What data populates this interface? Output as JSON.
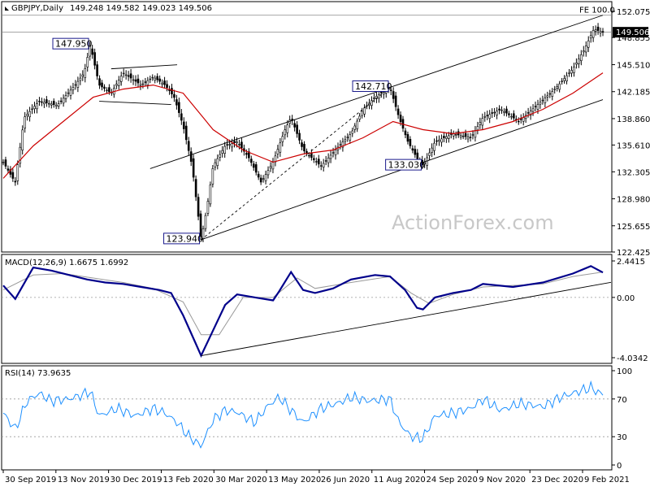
{
  "chart_data": {
    "type": "candlestick",
    "title": "GBPJPY,Daily",
    "ohlc_header": "149.248 149.582 149.023 149.506",
    "last_price": "149.506",
    "watermark": "ActionForex.com",
    "colors": {
      "candle": "#000000",
      "moving_average": "#cc0000",
      "macd": "#00008b",
      "signal": "#999999",
      "rsi": "#1e90ff",
      "label_border": "#1a1a8c"
    },
    "price_axis": {
      "ylim": [
        122.425,
        152.075
      ],
      "ticks": [
        "152.075",
        "148.855",
        "145.510",
        "142.185",
        "138.860",
        "135.610",
        "132.305",
        "128.980",
        "125.655",
        "122.425"
      ]
    },
    "x_ticks": [
      "30 Sep 2019",
      "13 Nov 2019",
      "30 Dec 2019",
      "13 Feb 2020",
      "30 Mar 2020",
      "13 May 2020",
      "26 Jun 2020",
      "11 Aug 2020",
      "24 Sep 2020",
      "9 Nov 2020",
      "23 Dec 2020",
      "9 Feb 2021"
    ],
    "price_path": [
      [
        0,
        133.5
      ],
      [
        0.02,
        131.0
      ],
      [
        0.035,
        139.0
      ],
      [
        0.06,
        141.0
      ],
      [
        0.09,
        140.5
      ],
      [
        0.12,
        143.0
      ],
      [
        0.135,
        144.5
      ],
      [
        0.145,
        147.95
      ],
      [
        0.16,
        143.0
      ],
      [
        0.18,
        142.0
      ],
      [
        0.2,
        144.5
      ],
      [
        0.23,
        143.0
      ],
      [
        0.25,
        144.0
      ],
      [
        0.27,
        143.0
      ],
      [
        0.285,
        141.5
      ],
      [
        0.3,
        138.0
      ],
      [
        0.315,
        133.0
      ],
      [
        0.325,
        127.0
      ],
      [
        0.33,
        123.94
      ],
      [
        0.34,
        128.0
      ],
      [
        0.35,
        133.0
      ],
      [
        0.37,
        135.5
      ],
      [
        0.39,
        136.0
      ],
      [
        0.41,
        134.0
      ],
      [
        0.43,
        131.0
      ],
      [
        0.45,
        133.5
      ],
      [
        0.47,
        137.5
      ],
      [
        0.48,
        139.0
      ],
      [
        0.5,
        135.0
      ],
      [
        0.53,
        133.0
      ],
      [
        0.56,
        135.5
      ],
      [
        0.58,
        137.0
      ],
      [
        0.6,
        140.0
      ],
      [
        0.62,
        141.5
      ],
      [
        0.645,
        142.71
      ],
      [
        0.66,
        139.0
      ],
      [
        0.675,
        136.0
      ],
      [
        0.69,
        134.0
      ],
      [
        0.7,
        133.03
      ],
      [
        0.72,
        136.0
      ],
      [
        0.75,
        137.0
      ],
      [
        0.78,
        136.5
      ],
      [
        0.8,
        139.0
      ],
      [
        0.83,
        140.0
      ],
      [
        0.86,
        138.5
      ],
      [
        0.89,
        140.5
      ],
      [
        0.92,
        142.5
      ],
      [
        0.95,
        145.0
      ],
      [
        0.97,
        147.5
      ],
      [
        0.985,
        149.9
      ],
      [
        1.0,
        149.506
      ]
    ],
    "moving_average_path": [
      [
        0,
        131.5
      ],
      [
        0.05,
        135.5
      ],
      [
        0.1,
        138.5
      ],
      [
        0.15,
        141.5
      ],
      [
        0.2,
        142.5
      ],
      [
        0.25,
        143.0
      ],
      [
        0.3,
        142.0
      ],
      [
        0.35,
        137.5
      ],
      [
        0.4,
        135.0
      ],
      [
        0.45,
        133.5
      ],
      [
        0.5,
        134.5
      ],
      [
        0.55,
        135.0
      ],
      [
        0.6,
        136.5
      ],
      [
        0.65,
        138.5
      ],
      [
        0.7,
        137.5
      ],
      [
        0.75,
        137.0
      ],
      [
        0.8,
        137.5
      ],
      [
        0.85,
        138.5
      ],
      [
        0.9,
        140.0
      ],
      [
        0.95,
        142.0
      ],
      [
        1.0,
        144.5
      ]
    ],
    "trend_lines": [
      {
        "from": [
          0.245,
          132.7
        ],
        "to": [
          1.0,
          151.6
        ]
      },
      {
        "from": [
          0.33,
          123.94
        ],
        "to": [
          1.0,
          141.2
        ]
      },
      {
        "from": [
          0.33,
          123.94
        ],
        "to": [
          0.645,
          142.71
        ],
        "dashed": true
      },
      {
        "from": [
          0.18,
          145.0
        ],
        "to": [
          0.29,
          145.5
        ]
      },
      {
        "from": [
          0.16,
          141.0
        ],
        "to": [
          0.28,
          140.6
        ]
      }
    ],
    "horizontal_lines": [
      {
        "value": 151.6,
        "label": "FE 100.0"
      },
      {
        "value": 149.506
      }
    ],
    "price_labels": [
      {
        "text": "147.950",
        "x": 0.145,
        "y": 147.95
      },
      {
        "text": "142.710",
        "x": 0.645,
        "y": 142.71
      },
      {
        "text": "133.030",
        "x": 0.7,
        "y": 133.03
      },
      {
        "text": "123.940",
        "x": 0.33,
        "y": 123.94
      }
    ],
    "macd": {
      "title": "MACD(12,26,9) 1.6675 1.6992",
      "ylim": [
        -4.0342,
        2.4415
      ],
      "ticks": [
        "2.4415",
        "0.00",
        "-4.0342"
      ],
      "macd_path": [
        [
          0,
          0.8
        ],
        [
          0.02,
          -0.1
        ],
        [
          0.05,
          2.0
        ],
        [
          0.08,
          1.8
        ],
        [
          0.11,
          1.5
        ],
        [
          0.14,
          1.2
        ],
        [
          0.17,
          1.0
        ],
        [
          0.2,
          0.9
        ],
        [
          0.23,
          0.7
        ],
        [
          0.26,
          0.5
        ],
        [
          0.28,
          0.3
        ],
        [
          0.3,
          -1.2
        ],
        [
          0.32,
          -3.0
        ],
        [
          0.33,
          -3.9
        ],
        [
          0.35,
          -2.2
        ],
        [
          0.37,
          -0.5
        ],
        [
          0.39,
          0.2
        ],
        [
          0.42,
          0.0
        ],
        [
          0.45,
          -0.2
        ],
        [
          0.46,
          0.4
        ],
        [
          0.48,
          1.7
        ],
        [
          0.5,
          0.5
        ],
        [
          0.52,
          0.3
        ],
        [
          0.55,
          0.6
        ],
        [
          0.58,
          1.2
        ],
        [
          0.62,
          1.5
        ],
        [
          0.645,
          1.4
        ],
        [
          0.67,
          0.5
        ],
        [
          0.69,
          -0.7
        ],
        [
          0.7,
          -0.8
        ],
        [
          0.72,
          0.0
        ],
        [
          0.75,
          0.3
        ],
        [
          0.78,
          0.5
        ],
        [
          0.8,
          0.9
        ],
        [
          0.85,
          0.7
        ],
        [
          0.9,
          1.0
        ],
        [
          0.95,
          1.6
        ],
        [
          0.98,
          2.1
        ],
        [
          1.0,
          1.6675
        ]
      ],
      "signal_path": [
        [
          0,
          0.5
        ],
        [
          0.05,
          1.5
        ],
        [
          0.1,
          1.6
        ],
        [
          0.15,
          1.3
        ],
        [
          0.2,
          1.0
        ],
        [
          0.25,
          0.6
        ],
        [
          0.3,
          -0.3
        ],
        [
          0.33,
          -2.5
        ],
        [
          0.36,
          -2.5
        ],
        [
          0.4,
          0.0
        ],
        [
          0.45,
          0.0
        ],
        [
          0.49,
          1.3
        ],
        [
          0.52,
          0.6
        ],
        [
          0.58,
          1.0
        ],
        [
          0.645,
          1.4
        ],
        [
          0.68,
          0.3
        ],
        [
          0.71,
          -0.4
        ],
        [
          0.75,
          0.2
        ],
        [
          0.8,
          0.7
        ],
        [
          0.9,
          0.9
        ],
        [
          0.95,
          1.4
        ],
        [
          1.0,
          1.6992
        ]
      ],
      "trend_line": {
        "from": [
          0.33,
          -3.9
        ],
        "to": [
          1.0,
          0.9
        ]
      }
    },
    "rsi": {
      "title": "RSI(14) 73.9635",
      "ylim": [
        0,
        100
      ],
      "ticks": [
        "100",
        "70",
        "30",
        "0"
      ],
      "levels": [
        70,
        30
      ],
      "path": [
        [
          0,
          55
        ],
        [
          0.02,
          38
        ],
        [
          0.04,
          68
        ],
        [
          0.06,
          76
        ],
        [
          0.08,
          68
        ],
        [
          0.11,
          70
        ],
        [
          0.13,
          74
        ],
        [
          0.145,
          78
        ],
        [
          0.16,
          52
        ],
        [
          0.19,
          60
        ],
        [
          0.22,
          52
        ],
        [
          0.25,
          60
        ],
        [
          0.27,
          55
        ],
        [
          0.29,
          45
        ],
        [
          0.31,
          30
        ],
        [
          0.33,
          20
        ],
        [
          0.35,
          48
        ],
        [
          0.37,
          58
        ],
        [
          0.39,
          56
        ],
        [
          0.42,
          45
        ],
        [
          0.44,
          62
        ],
        [
          0.46,
          72
        ],
        [
          0.48,
          58
        ],
        [
          0.5,
          45
        ],
        [
          0.53,
          60
        ],
        [
          0.56,
          66
        ],
        [
          0.58,
          72
        ],
        [
          0.61,
          68
        ],
        [
          0.645,
          70
        ],
        [
          0.66,
          45
        ],
        [
          0.68,
          30
        ],
        [
          0.7,
          28
        ],
        [
          0.72,
          52
        ],
        [
          0.75,
          55
        ],
        [
          0.78,
          60
        ],
        [
          0.8,
          70
        ],
        [
          0.83,
          58
        ],
        [
          0.86,
          65
        ],
        [
          0.9,
          62
        ],
        [
          0.93,
          72
        ],
        [
          0.96,
          78
        ],
        [
          0.98,
          82
        ],
        [
          1.0,
          73.9635
        ]
      ]
    }
  }
}
